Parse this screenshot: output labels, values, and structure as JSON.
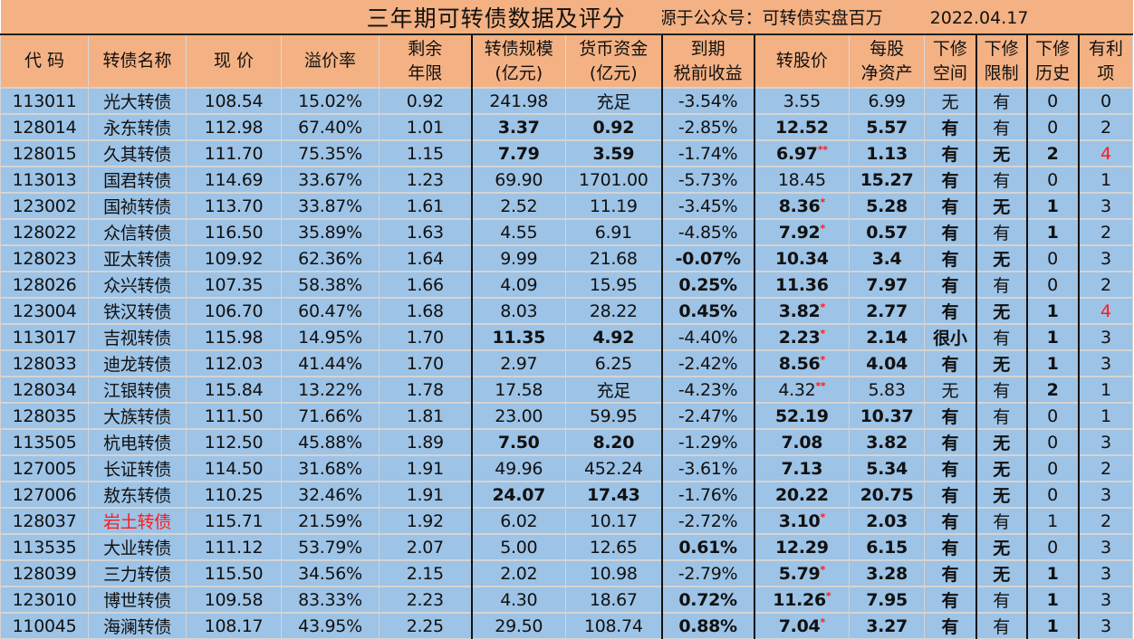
{
  "title": "三年期可转债数据及评分",
  "source": "来源于公众号：可转债实盘百万",
  "date": "2022.04.17",
  "colors": {
    "header_bg": "#F4B183",
    "body_bg": "#9DC3E6",
    "highlight": "#ff1a1a"
  },
  "columns": [
    {
      "key": "code",
      "label": "代 码"
    },
    {
      "key": "name",
      "label": "转债名称"
    },
    {
      "key": "price",
      "label": "现 价"
    },
    {
      "key": "premium",
      "label": "溢价率"
    },
    {
      "key": "years",
      "label": "剩余\n年限"
    },
    {
      "key": "scale",
      "label": "转债规模\n(亿元)"
    },
    {
      "key": "cash",
      "label": "货币资金\n(亿元)"
    },
    {
      "key": "ytm",
      "label": "到期\n税前收益"
    },
    {
      "key": "conv",
      "label": "转股价"
    },
    {
      "key": "nav",
      "label": "每股\n净资产"
    },
    {
      "key": "space",
      "label": "下修\n空间"
    },
    {
      "key": "limit",
      "label": "下修\n限制"
    },
    {
      "key": "hist",
      "label": "下修\n历史"
    },
    {
      "key": "benefit",
      "label": "有利\n项"
    }
  ],
  "rows": [
    {
      "code": "113011",
      "name": "光大转债",
      "price": "108.54",
      "premium": "15.02%",
      "years": "0.92",
      "scale": "241.98",
      "cash": "充足",
      "ytm": "-3.54%",
      "conv": "3.55",
      "star": "",
      "nav": "6.99",
      "space": "无",
      "limit": "有",
      "hist": "0",
      "benefit": "0",
      "bold": []
    },
    {
      "code": "128014",
      "name": "永东转债",
      "price": "112.98",
      "premium": "67.40%",
      "years": "1.01",
      "scale": "3.37",
      "cash": "0.92",
      "ytm": "-2.85%",
      "conv": "12.52",
      "star": "",
      "nav": "5.57",
      "space": "有",
      "limit": "有",
      "hist": "0",
      "benefit": "2",
      "bold": [
        "scale",
        "cash",
        "conv",
        "nav",
        "space"
      ]
    },
    {
      "code": "128015",
      "name": "久其转债",
      "price": "111.70",
      "premium": "75.35%",
      "years": "1.15",
      "scale": "7.79",
      "cash": "3.59",
      "ytm": "-1.74%",
      "conv": "6.97",
      "star": "**",
      "nav": "1.13",
      "space": "有",
      "limit": "无",
      "hist": "2",
      "benefit": "4",
      "bold": [
        "scale",
        "cash",
        "conv",
        "nav",
        "space",
        "limit",
        "hist"
      ],
      "red": [
        "benefit"
      ]
    },
    {
      "code": "113013",
      "name": "国君转债",
      "price": "114.69",
      "premium": "33.67%",
      "years": "1.23",
      "scale": "69.90",
      "cash": "1701.00",
      "ytm": "-5.73%",
      "conv": "18.45",
      "star": "",
      "nav": "15.27",
      "space": "有",
      "limit": "有",
      "hist": "0",
      "benefit": "1",
      "bold": [
        "nav",
        "space"
      ]
    },
    {
      "code": "123002",
      "name": "国祯转债",
      "price": "113.70",
      "premium": "33.87%",
      "years": "1.61",
      "scale": "2.52",
      "cash": "11.19",
      "ytm": "-3.45%",
      "conv": "8.36",
      "star": "*",
      "nav": "5.28",
      "space": "有",
      "limit": "无",
      "hist": "1",
      "benefit": "3",
      "bold": [
        "conv",
        "nav",
        "space",
        "limit",
        "hist"
      ]
    },
    {
      "code": "128022",
      "name": "众信转债",
      "price": "116.50",
      "premium": "35.89%",
      "years": "1.63",
      "scale": "4.55",
      "cash": "6.91",
      "ytm": "-4.85%",
      "conv": "7.92",
      "star": "*",
      "nav": "0.57",
      "space": "有",
      "limit": "有",
      "hist": "1",
      "benefit": "2",
      "bold": [
        "conv",
        "nav",
        "space",
        "hist"
      ]
    },
    {
      "code": "128023",
      "name": "亚太转债",
      "price": "109.92",
      "premium": "62.36%",
      "years": "1.64",
      "scale": "9.99",
      "cash": "21.68",
      "ytm": "-0.07%",
      "conv": "10.34",
      "star": "",
      "nav": "3.4",
      "space": "有",
      "limit": "无",
      "hist": "0",
      "benefit": "3",
      "bold": [
        "ytm",
        "conv",
        "nav",
        "space",
        "limit"
      ]
    },
    {
      "code": "128026",
      "name": "众兴转债",
      "price": "107.35",
      "premium": "58.38%",
      "years": "1.66",
      "scale": "4.09",
      "cash": "15.95",
      "ytm": "0.25%",
      "conv": "11.36",
      "star": "",
      "nav": "7.97",
      "space": "有",
      "limit": "有",
      "hist": "0",
      "benefit": "2",
      "bold": [
        "ytm",
        "conv",
        "nav",
        "space"
      ]
    },
    {
      "code": "123004",
      "name": "铁汉转债",
      "price": "106.70",
      "premium": "60.47%",
      "years": "1.68",
      "scale": "8.03",
      "cash": "28.22",
      "ytm": "0.45%",
      "conv": "3.82",
      "star": "*",
      "nav": "2.77",
      "space": "有",
      "limit": "无",
      "hist": "1",
      "benefit": "4",
      "bold": [
        "ytm",
        "conv",
        "nav",
        "space",
        "limit",
        "hist"
      ],
      "red": [
        "benefit"
      ]
    },
    {
      "code": "113017",
      "name": "吉视转债",
      "price": "115.98",
      "premium": "14.95%",
      "years": "1.70",
      "scale": "11.35",
      "cash": "4.92",
      "ytm": "-4.40%",
      "conv": "2.23",
      "star": "*",
      "nav": "2.14",
      "space": "很小",
      "limit": "有",
      "hist": "1",
      "benefit": "3",
      "bold": [
        "scale",
        "cash",
        "conv",
        "nav",
        "space",
        "hist"
      ]
    },
    {
      "code": "128033",
      "name": "迪龙转债",
      "price": "112.03",
      "premium": "41.44%",
      "years": "1.70",
      "scale": "2.97",
      "cash": "6.25",
      "ytm": "-2.42%",
      "conv": "8.56",
      "star": "*",
      "nav": "4.04",
      "space": "有",
      "limit": "无",
      "hist": "1",
      "benefit": "3",
      "bold": [
        "conv",
        "nav",
        "space",
        "limit",
        "hist"
      ]
    },
    {
      "code": "128034",
      "name": "江银转债",
      "price": "115.84",
      "premium": "13.22%",
      "years": "1.78",
      "scale": "17.58",
      "cash": "充足",
      "ytm": "-4.23%",
      "conv": "4.32",
      "star": "**",
      "nav": "5.83",
      "space": "无",
      "limit": "有",
      "hist": "2",
      "benefit": "1",
      "bold": [
        "hist"
      ]
    },
    {
      "code": "128035",
      "name": "大族转债",
      "price": "111.50",
      "premium": "71.66%",
      "years": "1.81",
      "scale": "23.00",
      "cash": "59.95",
      "ytm": "-2.47%",
      "conv": "52.19",
      "star": "",
      "nav": "10.37",
      "space": "有",
      "limit": "有",
      "hist": "0",
      "benefit": "1",
      "bold": [
        "conv",
        "nav",
        "space"
      ]
    },
    {
      "code": "113505",
      "name": "杭电转债",
      "price": "112.50",
      "premium": "45.88%",
      "years": "1.89",
      "scale": "7.50",
      "cash": "8.20",
      "ytm": "-1.29%",
      "conv": "7.08",
      "star": "",
      "nav": "3.82",
      "space": "有",
      "limit": "无",
      "hist": "0",
      "benefit": "3",
      "bold": [
        "scale",
        "cash",
        "conv",
        "nav",
        "space",
        "limit"
      ]
    },
    {
      "code": "127005",
      "name": "长证转债",
      "price": "114.50",
      "premium": "31.68%",
      "years": "1.91",
      "scale": "49.96",
      "cash": "452.24",
      "ytm": "-3.61%",
      "conv": "7.13",
      "star": "",
      "nav": "5.34",
      "space": "有",
      "limit": "无",
      "hist": "0",
      "benefit": "2",
      "bold": [
        "conv",
        "nav",
        "space",
        "limit"
      ]
    },
    {
      "code": "127006",
      "name": "敖东转债",
      "price": "110.25",
      "premium": "32.46%",
      "years": "1.91",
      "scale": "24.07",
      "cash": "17.43",
      "ytm": "-1.76%",
      "conv": "20.22",
      "star": "",
      "nav": "20.75",
      "space": "有",
      "limit": "无",
      "hist": "0",
      "benefit": "3",
      "bold": [
        "scale",
        "cash",
        "conv",
        "nav",
        "space",
        "limit"
      ]
    },
    {
      "code": "128037",
      "name": "岩土转债",
      "price": "115.71",
      "premium": "21.59%",
      "years": "1.92",
      "scale": "6.02",
      "cash": "10.17",
      "ytm": "-2.72%",
      "conv": "3.10",
      "star": "*",
      "nav": "2.03",
      "space": "有",
      "limit": "有",
      "hist": "1",
      "benefit": "2",
      "bold": [
        "conv",
        "nav",
        "space"
      ],
      "red": [
        "name"
      ]
    },
    {
      "code": "113535",
      "name": "大业转债",
      "price": "111.12",
      "premium": "53.79%",
      "years": "2.07",
      "scale": "5.00",
      "cash": "12.65",
      "ytm": "0.61%",
      "conv": "12.29",
      "star": "",
      "nav": "6.15",
      "space": "有",
      "limit": "无",
      "hist": "0",
      "benefit": "3",
      "bold": [
        "ytm",
        "conv",
        "nav",
        "space",
        "limit"
      ]
    },
    {
      "code": "128039",
      "name": "三力转债",
      "price": "115.50",
      "premium": "34.56%",
      "years": "2.15",
      "scale": "2.02",
      "cash": "10.98",
      "ytm": "-2.79%",
      "conv": "5.79",
      "star": "*",
      "nav": "3.28",
      "space": "有",
      "limit": "无",
      "hist": "1",
      "benefit": "3",
      "bold": [
        "conv",
        "nav",
        "space",
        "limit",
        "hist"
      ]
    },
    {
      "code": "123010",
      "name": "博世转债",
      "price": "109.58",
      "premium": "83.33%",
      "years": "2.23",
      "scale": "4.30",
      "cash": "18.67",
      "ytm": "0.72%",
      "conv": "11.26",
      "star": "*",
      "nav": "7.95",
      "space": "有",
      "limit": "有",
      "hist": "1",
      "benefit": "3",
      "bold": [
        "ytm",
        "conv",
        "nav",
        "space",
        "hist"
      ]
    },
    {
      "code": "110045",
      "name": "海澜转债",
      "price": "108.17",
      "premium": "43.95%",
      "years": "2.25",
      "scale": "29.50",
      "cash": "108.74",
      "ytm": "0.88%",
      "conv": "7.04",
      "star": "*",
      "nav": "3.27",
      "space": "有",
      "limit": "有",
      "hist": "1",
      "benefit": "3",
      "bold": [
        "ytm",
        "conv",
        "nav",
        "space",
        "hist"
      ]
    }
  ]
}
